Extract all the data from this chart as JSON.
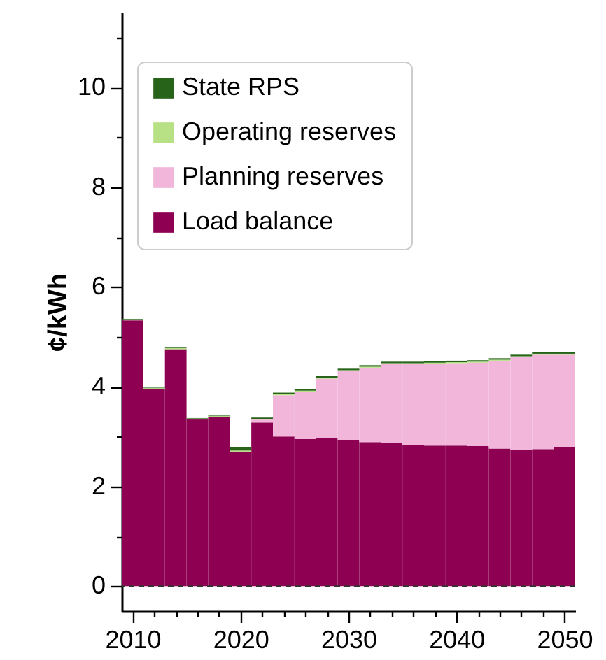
{
  "chart_data": {
    "type": "bar",
    "stacked": true,
    "ylabel": "¢/kWh",
    "legend": "top left",
    "x": [
      2010,
      2012,
      2014,
      2016,
      2018,
      2020,
      2022,
      2024,
      2026,
      2028,
      2030,
      2032,
      2034,
      2036,
      2038,
      2040,
      2042,
      2044,
      2046,
      2048,
      2050
    ],
    "series": [
      {
        "name": "Load balance",
        "color": "#8e0152",
        "values": [
          5.33,
          3.95,
          4.75,
          3.34,
          3.39,
          2.69,
          3.28,
          3.0,
          2.95,
          2.97,
          2.92,
          2.89,
          2.87,
          2.83,
          2.82,
          2.82,
          2.81,
          2.76,
          2.73,
          2.75,
          2.79
        ]
      },
      {
        "name": "Planning reserves",
        "color": "#f1b6da",
        "values": [
          0,
          0,
          0,
          0,
          0,
          0,
          0.06,
          0.83,
          0.95,
          1.19,
          1.39,
          1.49,
          1.58,
          1.62,
          1.64,
          1.65,
          1.67,
          1.76,
          1.86,
          1.89,
          1.85
        ]
      },
      {
        "name": "Operating reserves",
        "color": "#b8e186",
        "values": [
          0.02,
          0.02,
          0.02,
          0.02,
          0.02,
          0.03,
          0.01,
          0.02,
          0.02,
          0.02,
          0.02,
          0.02,
          0.02,
          0.02,
          0.02,
          0.02,
          0.02,
          0.02,
          0.02,
          0.02,
          0.02
        ]
      },
      {
        "name": "State RPS",
        "color": "#276419",
        "values": [
          0.01,
          0.01,
          0.01,
          0.01,
          0.01,
          0.07,
          0.03,
          0.03,
          0.03,
          0.03,
          0.03,
          0.03,
          0.03,
          0.03,
          0.03,
          0.03,
          0.03,
          0.03,
          0.03,
          0.03,
          0.03
        ]
      }
    ],
    "xlim": [
      2009,
      2051
    ],
    "xticks": [
      2010,
      {
        "value": 2012,
        "label": null
      },
      {
        "value": 2014,
        "label": null
      },
      {
        "value": 2016,
        "label": null
      },
      {
        "value": 2018,
        "label": null
      },
      2020,
      {
        "value": 2022,
        "label": null
      },
      {
        "value": 2024,
        "label": null
      },
      {
        "value": 2026,
        "label": null
      },
      {
        "value": 2028,
        "label": null
      },
      2030,
      {
        "value": 2032,
        "label": null
      },
      {
        "value": 2034,
        "label": null
      },
      {
        "value": 2036,
        "label": null
      },
      {
        "value": 2038,
        "label": null
      },
      2040,
      {
        "value": 2042,
        "label": null
      },
      {
        "value": 2044,
        "label": null
      },
      {
        "value": 2046,
        "label": null
      },
      {
        "value": 2048,
        "label": null
      },
      2050
    ],
    "ylim": [
      -0.5,
      11.5
    ],
    "yticks": [
      0,
      {
        "value": 1,
        "label": null
      },
      2,
      {
        "value": 3,
        "label": null
      },
      4,
      {
        "value": 5,
        "label": null
      },
      6,
      {
        "value": 7,
        "label": null
      },
      8,
      {
        "value": 9,
        "label": null
      },
      10,
      {
        "value": 11,
        "label": null
      }
    ],
    "ref_lines": [
      {
        "axis": "y",
        "value": 0,
        "color": "#333333",
        "line_style": "dashed"
      }
    ]
  }
}
